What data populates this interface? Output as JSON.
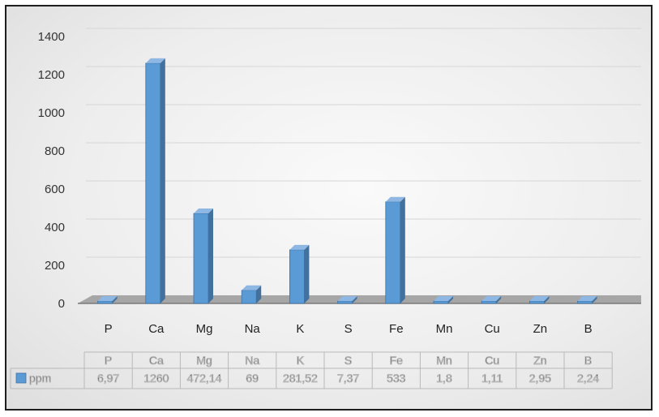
{
  "chart_data": {
    "type": "bar",
    "title": "",
    "xlabel": "",
    "ylabel": "",
    "categories": [
      "P",
      "Ca",
      "Mg",
      "Na",
      "K",
      "S",
      "Fe",
      "Mn",
      "Cu",
      "Zn",
      "B"
    ],
    "series": [
      {
        "name": "ppm",
        "values": [
          6.97,
          1260,
          472.14,
          69,
          281.52,
          7.37,
          533,
          1.8,
          1.11,
          2.95,
          2.24
        ],
        "labels": [
          "6,97",
          "1260",
          "472,14",
          "69",
          "281,52",
          "7,37",
          "533",
          "1,8",
          "1,11",
          "2,95",
          "2,24"
        ]
      }
    ],
    "yticks": [
      "0",
      "200",
      "400",
      "600",
      "800",
      "1000",
      "1200",
      "1400"
    ],
    "ylim": [
      0,
      1400
    ],
    "grid": true,
    "legend": "data-table",
    "style": "3d-column",
    "colors": {
      "bar_front": "#5b9bd5",
      "bar_side": "#41719c",
      "bar_top": "#8fb7e3",
      "floor": "#a6a6a6"
    }
  }
}
